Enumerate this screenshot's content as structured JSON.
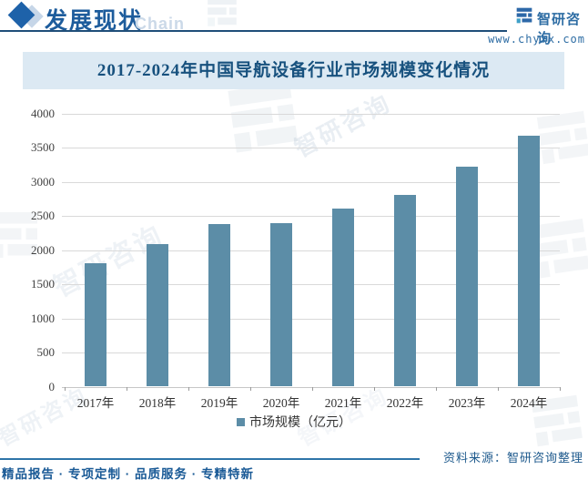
{
  "header": {
    "title": "发展现状",
    "watermark": "Chain",
    "brand": "智研咨询",
    "website": "www.chyxx.com"
  },
  "chart_data": {
    "type": "bar",
    "title": "2017-2024年中国导航设备行业市场规模变化情况",
    "categories": [
      "2017年",
      "2018年",
      "2019年",
      "2020年",
      "2021年",
      "2022年",
      "2023年",
      "2024年"
    ],
    "values": [
      1810,
      2090,
      2380,
      2400,
      2610,
      2810,
      3230,
      3680
    ],
    "series": [
      {
        "name": "市场规模（亿元）",
        "values": [
          1810,
          2090,
          2380,
          2400,
          2610,
          2810,
          3230,
          3680
        ]
      }
    ],
    "legend": [
      "市场规模（亿元）"
    ],
    "legend_position": "bottom",
    "xlabel": "",
    "ylabel": "",
    "ylim": [
      0,
      4000
    ],
    "ytick_interval": 500,
    "grid": true,
    "bar_color": "#5C8DA7"
  },
  "source": "资料来源：智研咨询整理",
  "footer": {
    "tagline": "精品报告 · 专项定制 · 品质服务 · 专精特新"
  },
  "watermark": {
    "text": "智研咨询"
  },
  "colors": {
    "accent_blue": "#1D5C9C",
    "band_background": "#DCE9F3",
    "bar": "#5C8DA7",
    "gridline": "#D9D9D9",
    "link_blue": "#2E6DA4",
    "footer_blue": "#1A5A96"
  }
}
